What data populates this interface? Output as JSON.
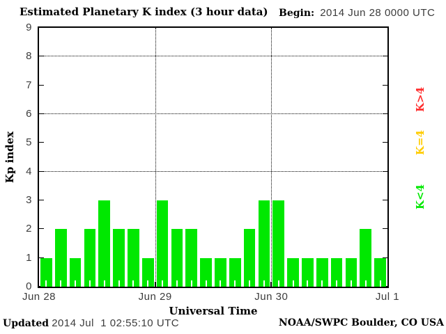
{
  "header": {
    "title": "Estimated Planetary K index (3 hour data)",
    "begin_label": "Begin:",
    "begin_value": "2014 Jun 28 0000 UTC"
  },
  "chart_data": {
    "type": "bar",
    "title": "Estimated Planetary K index (3 hour data)",
    "begin": "2014 Jun 28 0000 UTC",
    "interval_hours": 3,
    "values": [
      1,
      2,
      1,
      2,
      3,
      2,
      2,
      1,
      3,
      2,
      2,
      1,
      1,
      1,
      2,
      3,
      3,
      1,
      1,
      1,
      1,
      1,
      2,
      1
    ],
    "x_tick_labels": [
      "Jun 28",
      "Jun 29",
      "Jun 30",
      "Jul 1"
    ],
    "x_tick_slots": [
      0,
      8,
      16,
      24
    ],
    "day_boundary_slots": [
      8,
      16
    ],
    "xlabel": "Universal Time",
    "ylabel": "Kp index",
    "ylim": [
      0,
      9
    ],
    "y_ticks": [
      0,
      1,
      2,
      3,
      4,
      5,
      6,
      7,
      8,
      9
    ],
    "grid_y": [
      4,
      6,
      8
    ],
    "grid": "dotted",
    "colors": {
      "k_lt_4": "#00e800",
      "k_eq_4": "#ffcc00",
      "k_gt_4": "#ff2d2d"
    },
    "legend": [
      {
        "label": "K>4",
        "color_key": "k_gt_4"
      },
      {
        "label": "K=4",
        "color_key": "k_eq_4"
      },
      {
        "label": "K<4",
        "color_key": "k_lt_4"
      }
    ],
    "legend_position": "right"
  },
  "footer": {
    "updated_label": "Updated",
    "updated_value": "2014 Jul  1 02:55:10 UTC",
    "credit": "NOAA/SWPC Boulder, CO USA"
  }
}
